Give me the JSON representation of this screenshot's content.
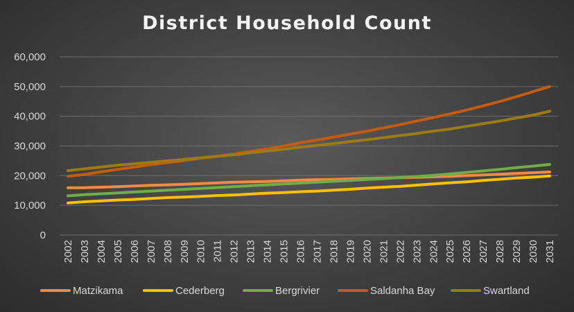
{
  "chart_data": {
    "type": "line",
    "title": "District Household Count",
    "xlabel": "",
    "ylabel": "",
    "ylim": [
      0,
      60000
    ],
    "yticks": [
      "0",
      "10,000",
      "20,000",
      "30,000",
      "40,000",
      "50,000",
      "60,000"
    ],
    "ytick_values": [
      0,
      10000,
      20000,
      30000,
      40000,
      50000,
      60000
    ],
    "grid": true,
    "legend_position": "bottom",
    "categories": [
      "2002",
      "2003",
      "2004",
      "2005",
      "2006",
      "2007",
      "2008",
      "2009",
      "2010",
      "2011",
      "2012",
      "2013",
      "2014",
      "2015",
      "2016",
      "2017",
      "2018",
      "2019",
      "2020",
      "2021",
      "2022",
      "2023",
      "2024",
      "2025",
      "2026",
      "2027",
      "2028",
      "2029",
      "2030",
      "2031"
    ],
    "series": [
      {
        "name": "Matzikama",
        "color": "#f08a48",
        "values": [
          15900,
          15950,
          16100,
          16300,
          16500,
          16750,
          16900,
          17100,
          17350,
          17550,
          17800,
          17900,
          18050,
          18250,
          18500,
          18650,
          18750,
          18900,
          19050,
          19200,
          19300,
          19450,
          19600,
          19750,
          20000,
          20250,
          20500,
          20750,
          21000,
          21250
        ]
      },
      {
        "name": "Cederberg",
        "color": "#ffc000",
        "values": [
          10800,
          11200,
          11500,
          11800,
          12000,
          12300,
          12600,
          12800,
          13000,
          13300,
          13500,
          13800,
          14100,
          14300,
          14600,
          14800,
          15100,
          15400,
          15800,
          16100,
          16400,
          16800,
          17200,
          17600,
          17900,
          18400,
          18800,
          19200,
          19500,
          19900
        ]
      },
      {
        "name": "Bergrivier",
        "color": "#70ad47",
        "values": [
          13200,
          13600,
          13900,
          14200,
          14500,
          14800,
          15100,
          15400,
          15700,
          16000,
          16300,
          16600,
          16900,
          17200,
          17500,
          17800,
          18100,
          18400,
          18700,
          19000,
          19400,
          19700,
          20100,
          20600,
          21100,
          21600,
          22100,
          22700,
          23200,
          23800
        ]
      },
      {
        "name": "Saldanha Bay",
        "color": "#c55a11",
        "values": [
          19800,
          20400,
          21300,
          22100,
          22900,
          23700,
          24400,
          25100,
          25900,
          26600,
          27300,
          28200,
          29000,
          30000,
          31100,
          32000,
          33000,
          34000,
          35000,
          36100,
          37200,
          38400,
          39600,
          40800,
          42100,
          43500,
          45000,
          46600,
          48300,
          50000
        ]
      },
      {
        "name": "Swartland",
        "color": "#9c7a14",
        "values": [
          21700,
          22300,
          22900,
          23500,
          24000,
          24500,
          25000,
          25500,
          26000,
          26500,
          27000,
          27700,
          28300,
          28900,
          29600,
          30200,
          30800,
          31500,
          32100,
          32800,
          33500,
          34200,
          35000,
          35700,
          36600,
          37500,
          38400,
          39400,
          40400,
          41700
        ]
      }
    ]
  }
}
